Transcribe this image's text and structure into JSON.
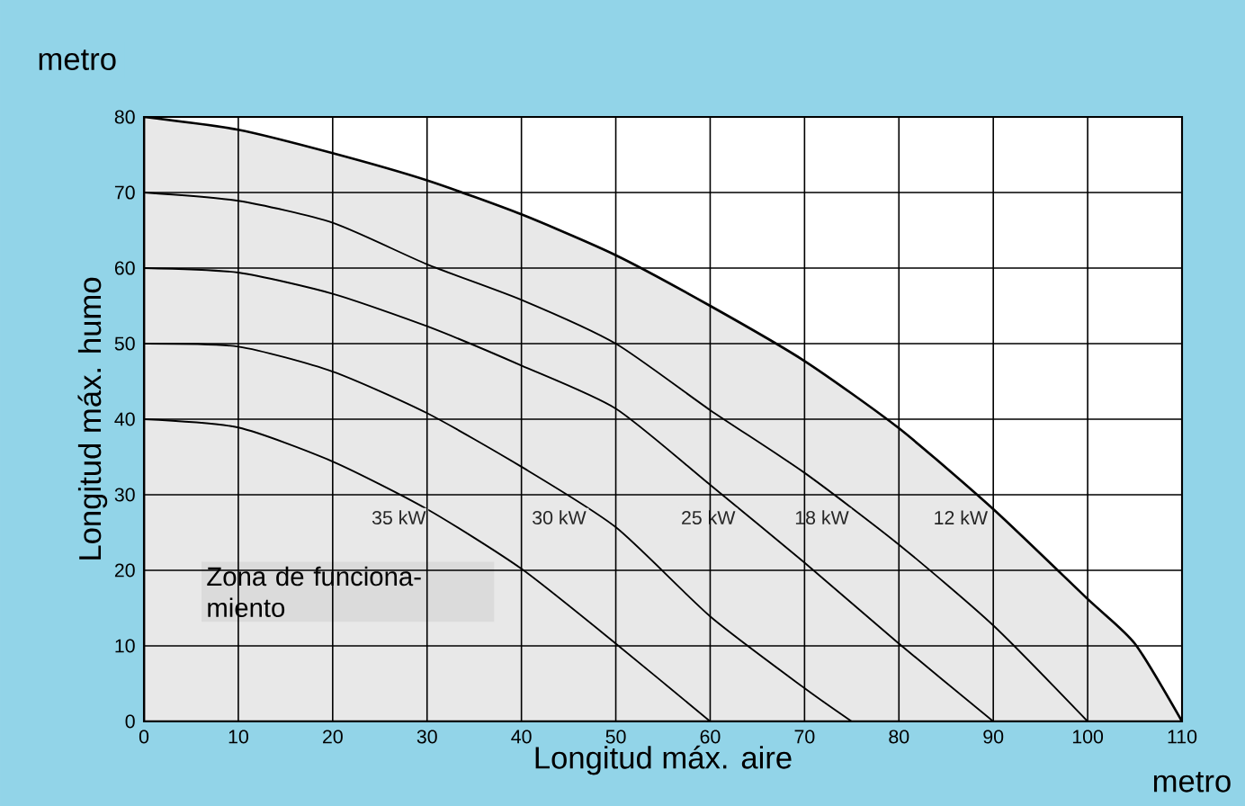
{
  "chart_data": {
    "type": "line",
    "xlabel": "Longitud máx. aire",
    "ylabel": "Longitud máx. humo",
    "annotations": [
      "metro",
      "metro",
      "Zona de funciona- miento"
    ],
    "x": [
      0,
      10,
      20,
      30,
      40,
      50,
      60,
      70,
      80,
      90,
      100,
      105,
      110
    ],
    "series": [
      {
        "name": "12 kW",
        "type": "area",
        "color": "#000000",
        "values": [
          80,
          78.3,
          75.2,
          71.6,
          67.1,
          61.7,
          55.0,
          47.7,
          38.8,
          28.1,
          16.2,
          10.3,
          0
        ]
      },
      {
        "name": "18 kW",
        "color": "#000000",
        "x": [
          0,
          10,
          20,
          30,
          40,
          50,
          60,
          70,
          80,
          90,
          100
        ],
        "values": [
          70,
          68.9,
          66.0,
          60.5,
          55.8,
          50.0,
          41.2,
          32.9,
          23.4,
          12.7,
          0
        ]
      },
      {
        "name": "25 kW",
        "color": "#000000",
        "x": [
          0,
          10,
          20,
          30,
          40,
          50,
          60,
          70,
          80,
          90
        ],
        "values": [
          60,
          59.4,
          56.6,
          52.3,
          47.1,
          41.4,
          31.3,
          21.0,
          10.3,
          0
        ]
      },
      {
        "name": "30 kW",
        "color": "#000000",
        "x": [
          0,
          10,
          20,
          30,
          40,
          50,
          60,
          70,
          75
        ],
        "values": [
          50,
          49.6,
          46.3,
          40.8,
          33.7,
          25.7,
          13.9,
          4.4,
          0
        ]
      },
      {
        "name": "35 kW",
        "color": "#000000",
        "x": [
          0,
          10,
          20,
          30,
          40,
          50,
          60
        ],
        "values": [
          40,
          38.9,
          34.4,
          28.1,
          20.2,
          10.3,
          0
        ]
      }
    ],
    "xlim": [
      0,
      110
    ],
    "ylim": [
      0,
      80
    ],
    "xticks": [
      0,
      10,
      20,
      30,
      40,
      50,
      60,
      70,
      80,
      90,
      100,
      110
    ],
    "yticks": [
      0,
      10,
      20,
      30,
      40,
      50,
      60,
      70,
      80
    ],
    "grid": true,
    "legend": false,
    "marker": "none",
    "line_style": "solid"
  }
}
